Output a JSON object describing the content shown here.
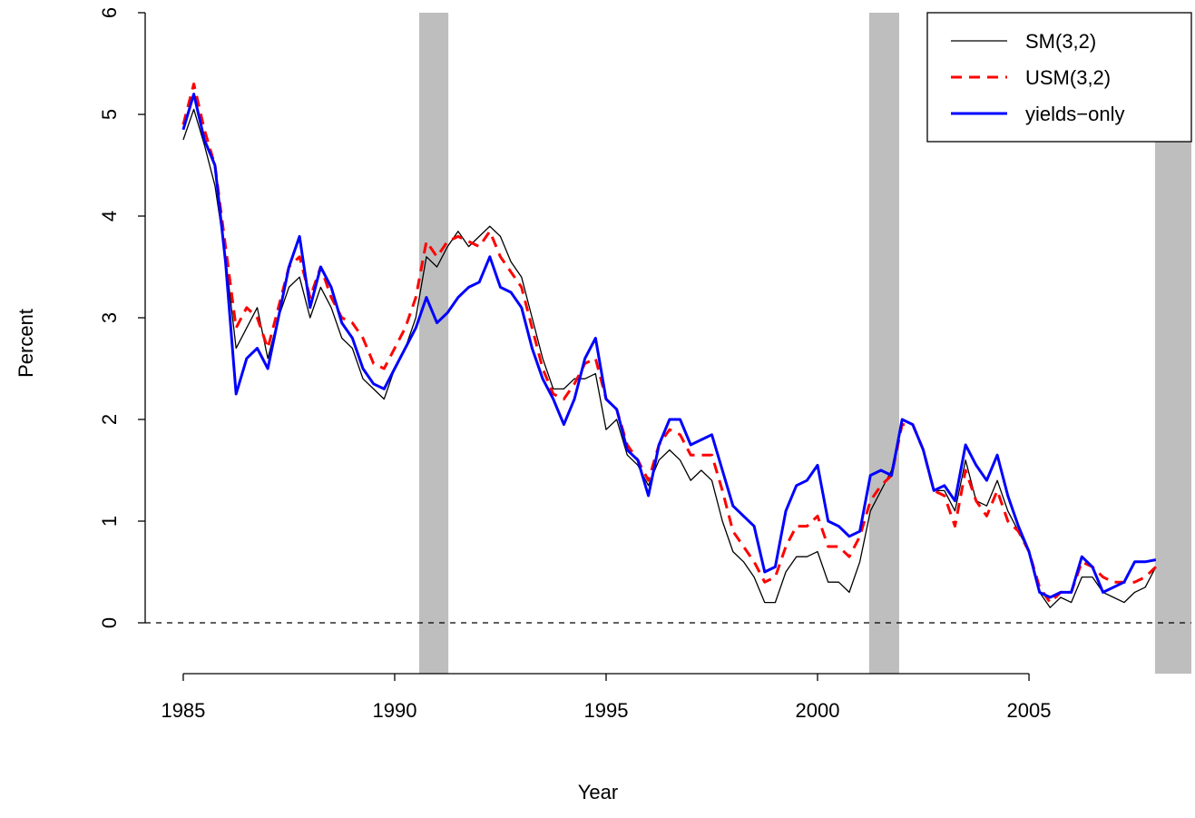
{
  "chart_data": {
    "type": "line",
    "x_label": "Year",
    "y_label": "Percent",
    "xlim": [
      1984.1,
      2008.84
    ],
    "ylim": [
      -0.5,
      6
    ],
    "xticks": [
      1985,
      1990,
      1995,
      2000,
      2005
    ],
    "yticks": [
      0,
      1,
      2,
      3,
      4,
      5,
      6
    ],
    "hline": 0,
    "shaded_periods": [
      [
        1990.58,
        1991.27
      ],
      [
        2001.22,
        2001.93
      ],
      [
        2007.98,
        2008.84
      ]
    ],
    "shade_color": "#bebebe",
    "legend": "top-right",
    "x": [
      1985.0,
      1985.25,
      1985.5,
      1985.75,
      1986.0,
      1986.25,
      1986.5,
      1986.75,
      1987.0,
      1987.25,
      1987.5,
      1987.75,
      1988.0,
      1988.25,
      1988.5,
      1988.75,
      1989.0,
      1989.25,
      1989.5,
      1989.75,
      1990.0,
      1990.25,
      1990.5,
      1990.75,
      1991.0,
      1991.25,
      1991.5,
      1991.75,
      1992.0,
      1992.25,
      1992.5,
      1992.75,
      1993.0,
      1993.25,
      1993.5,
      1993.75,
      1994.0,
      1994.25,
      1994.5,
      1994.75,
      1995.0,
      1995.25,
      1995.5,
      1995.75,
      1996.0,
      1996.25,
      1996.5,
      1996.75,
      1997.0,
      1997.25,
      1997.5,
      1997.75,
      1998.0,
      1998.25,
      1998.5,
      1998.75,
      1999.0,
      1999.25,
      1999.5,
      1999.75,
      2000.0,
      2000.25,
      2000.5,
      2000.75,
      2001.0,
      2001.25,
      2001.5,
      2001.75,
      2002.0,
      2002.25,
      2002.5,
      2002.75,
      2003.0,
      2003.25,
      2003.5,
      2003.75,
      2004.0,
      2004.25,
      2004.5,
      2004.75,
      2005.0,
      2005.25,
      2005.5,
      2005.75,
      2006.0,
      2006.25,
      2006.5,
      2006.75,
      2007.0,
      2007.25,
      2007.5,
      2007.75,
      2008.0
    ],
    "series": [
      {
        "name": "SM(3,2)",
        "color": "#000000",
        "line_style": "solid",
        "line_width": 1.3,
        "values": [
          4.75,
          5.05,
          4.7,
          4.3,
          3.6,
          2.7,
          2.9,
          3.1,
          2.6,
          3.0,
          3.3,
          3.4,
          3.0,
          3.3,
          3.1,
          2.8,
          2.7,
          2.4,
          2.3,
          2.2,
          2.5,
          2.7,
          3.0,
          3.6,
          3.5,
          3.7,
          3.85,
          3.7,
          3.8,
          3.9,
          3.8,
          3.55,
          3.4,
          3.0,
          2.6,
          2.3,
          2.3,
          2.4,
          2.4,
          2.45,
          1.9,
          2.0,
          1.65,
          1.55,
          1.35,
          1.6,
          1.7,
          1.6,
          1.4,
          1.5,
          1.4,
          1.0,
          0.7,
          0.6,
          0.45,
          0.2,
          0.2,
          0.5,
          0.65,
          0.65,
          0.7,
          0.4,
          0.4,
          0.3,
          0.6,
          1.1,
          1.3,
          1.5,
          2.0,
          1.95,
          1.7,
          1.3,
          1.3,
          1.1,
          1.6,
          1.2,
          1.15,
          1.4,
          1.1,
          0.9,
          0.7,
          0.3,
          0.15,
          0.25,
          0.2,
          0.45,
          0.45,
          0.3,
          0.25,
          0.2,
          0.3,
          0.35,
          0.55
        ]
      },
      {
        "name": "USM(3,2)",
        "color": "#ff0000",
        "line_style": "dashed",
        "line_width": 3,
        "values": [
          4.9,
          5.3,
          4.85,
          4.5,
          3.7,
          2.9,
          3.1,
          3.0,
          2.7,
          3.1,
          3.5,
          3.6,
          3.2,
          3.5,
          3.2,
          3.0,
          2.95,
          2.8,
          2.55,
          2.5,
          2.7,
          2.9,
          3.2,
          3.75,
          3.6,
          3.75,
          3.8,
          3.75,
          3.7,
          3.85,
          3.6,
          3.45,
          3.3,
          2.9,
          2.5,
          2.25,
          2.2,
          2.35,
          2.55,
          2.6,
          2.2,
          2.1,
          1.75,
          1.6,
          1.4,
          1.75,
          1.9,
          1.85,
          1.65,
          1.65,
          1.65,
          1.3,
          0.9,
          0.75,
          0.6,
          0.4,
          0.45,
          0.75,
          0.95,
          0.95,
          1.05,
          0.75,
          0.75,
          0.65,
          0.85,
          1.2,
          1.35,
          1.45,
          1.95,
          1.95,
          1.7,
          1.3,
          1.25,
          0.95,
          1.5,
          1.2,
          1.05,
          1.3,
          1.0,
          0.9,
          0.7,
          0.35,
          0.2,
          0.3,
          0.3,
          0.6,
          0.55,
          0.45,
          0.4,
          0.4,
          0.4,
          0.45,
          0.55
        ]
      },
      {
        "name": "yields−only",
        "color": "#0000ff",
        "line_style": "solid",
        "line_width": 3,
        "values": [
          4.85,
          5.2,
          4.75,
          4.5,
          3.55,
          2.25,
          2.6,
          2.7,
          2.5,
          3.0,
          3.5,
          3.8,
          3.1,
          3.5,
          3.3,
          2.95,
          2.8,
          2.5,
          2.35,
          2.3,
          2.5,
          2.7,
          2.9,
          3.2,
          2.95,
          3.05,
          3.2,
          3.3,
          3.35,
          3.6,
          3.3,
          3.25,
          3.1,
          2.7,
          2.4,
          2.2,
          1.95,
          2.2,
          2.6,
          2.8,
          2.2,
          2.1,
          1.7,
          1.6,
          1.25,
          1.75,
          2.0,
          2.0,
          1.75,
          1.8,
          1.85,
          1.5,
          1.15,
          1.05,
          0.95,
          0.5,
          0.55,
          1.1,
          1.35,
          1.4,
          1.55,
          1.0,
          0.95,
          0.85,
          0.9,
          1.45,
          1.5,
          1.45,
          2.0,
          1.95,
          1.7,
          1.3,
          1.35,
          1.2,
          1.75,
          1.55,
          1.4,
          1.65,
          1.25,
          0.95,
          0.7,
          0.3,
          0.25,
          0.3,
          0.3,
          0.65,
          0.55,
          0.3,
          0.35,
          0.4,
          0.6,
          0.6,
          0.62
        ]
      }
    ]
  }
}
